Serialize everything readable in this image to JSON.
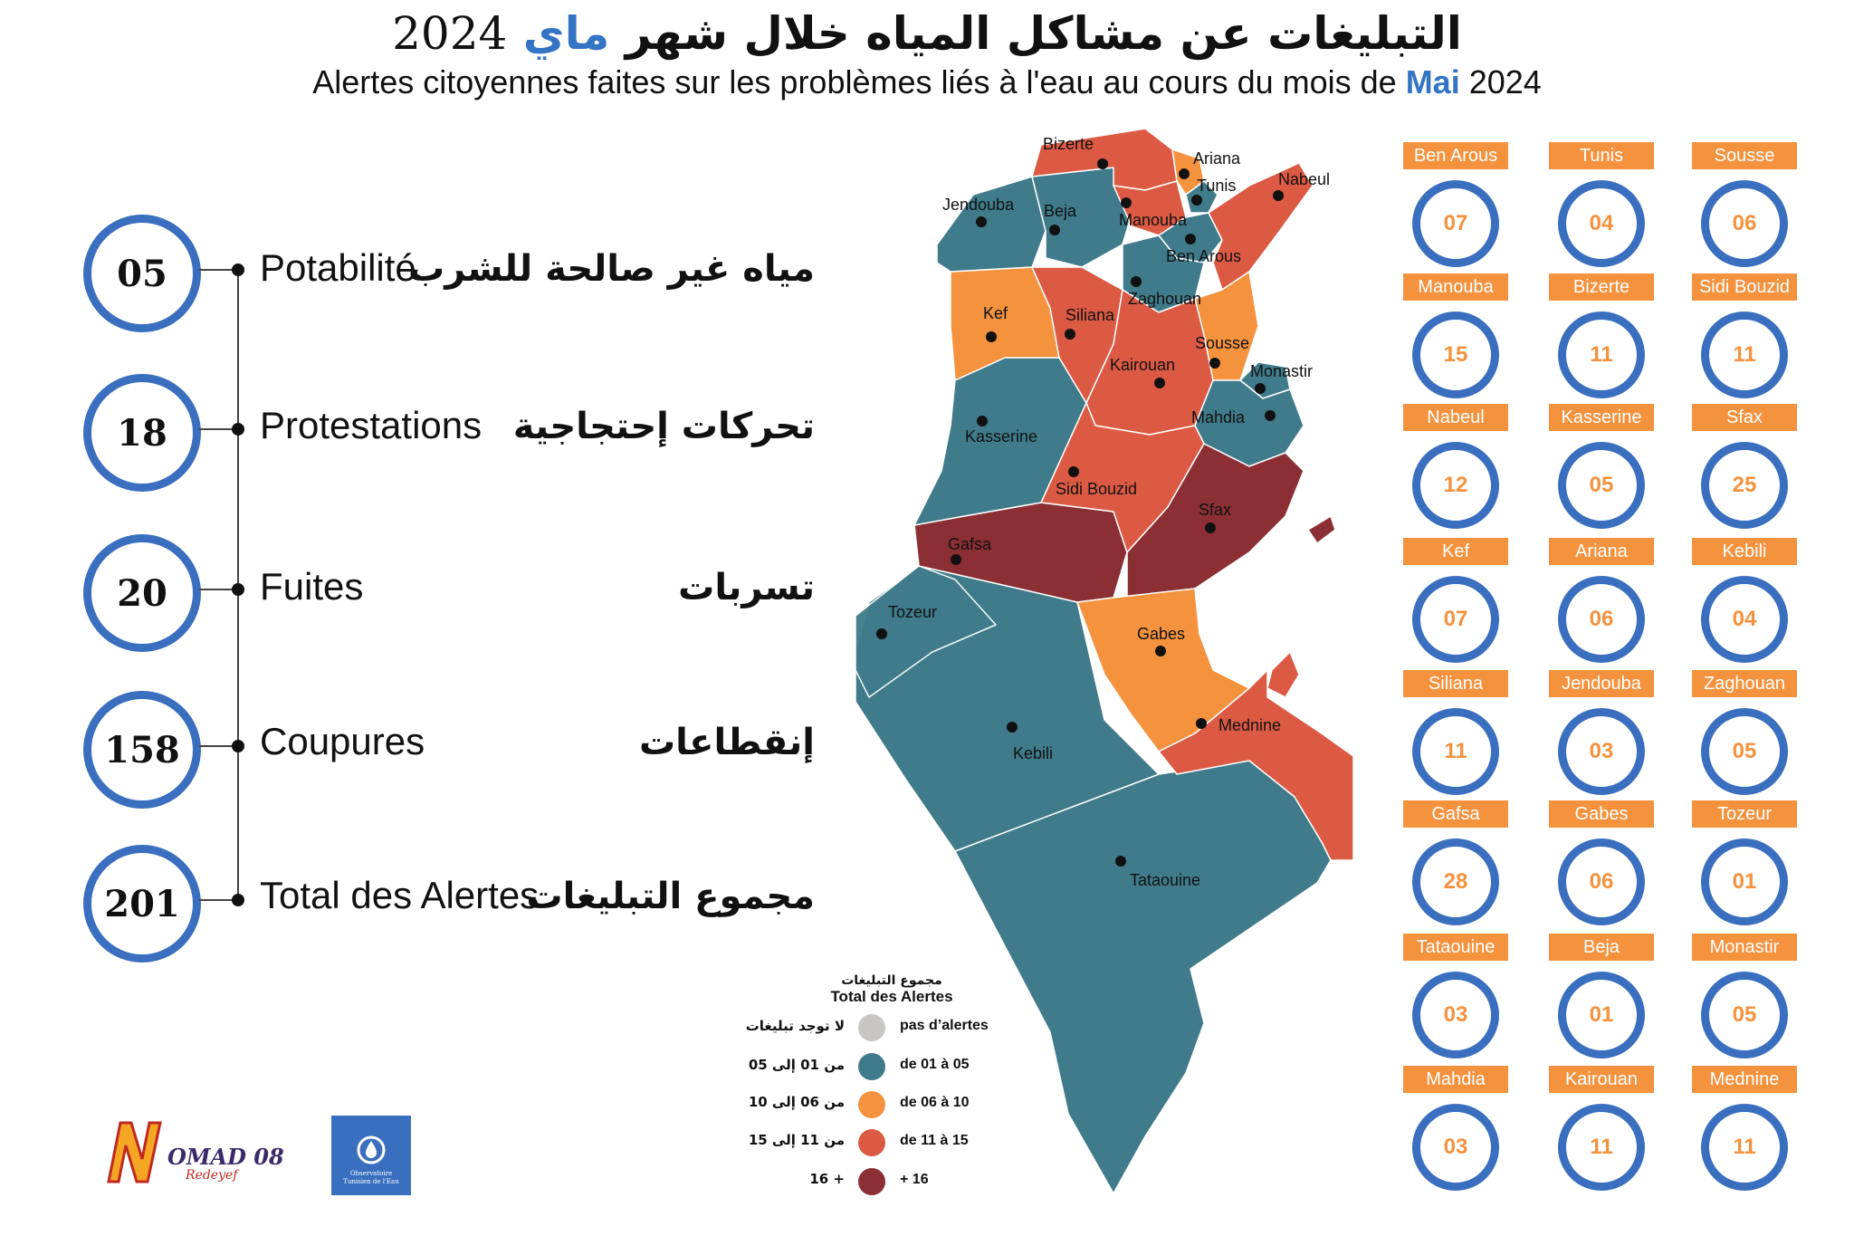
{
  "title": {
    "ar_prefix": "التبليغات عن مشاكل المياه خلال شهر",
    "ar_month": "ماي",
    "ar_year": "2024",
    "fr_prefix": "Alertes citoyennes faites sur les problèmes liés à l'eau au cours du mois de",
    "fr_month": "Mai",
    "fr_year": "2024"
  },
  "stats": [
    {
      "value": "05",
      "fr": "Potabilité",
      "ar": "مياه غير صالحة للشرب"
    },
    {
      "value": "18",
      "fr": "Protestations",
      "ar": "تحركات إحتجاجية"
    },
    {
      "value": "20",
      "fr": "Fuites",
      "ar": "تسربات"
    },
    {
      "value": "158",
      "fr": "Coupures",
      "ar": "إنقطاعات"
    },
    {
      "value": "201",
      "fr": "Total des Alertes",
      "ar": "مجموع التبليغات"
    }
  ],
  "governorates": [
    {
      "name": "Ben Arous",
      "value": "07"
    },
    {
      "name": "Tunis",
      "value": "04"
    },
    {
      "name": "Sousse",
      "value": "06"
    },
    {
      "name": "Manouba",
      "value": "15"
    },
    {
      "name": "Bizerte",
      "value": "11"
    },
    {
      "name": "Sidi Bouzid",
      "value": "11"
    },
    {
      "name": "Nabeul",
      "value": "12"
    },
    {
      "name": "Kasserine",
      "value": "05"
    },
    {
      "name": "Sfax",
      "value": "25"
    },
    {
      "name": "Kef",
      "value": "07"
    },
    {
      "name": "Ariana",
      "value": "06"
    },
    {
      "name": "Kebili",
      "value": "04"
    },
    {
      "name": "Siliana",
      "value": "11"
    },
    {
      "name": "Jendouba",
      "value": "03"
    },
    {
      "name": "Zaghouan",
      "value": "05"
    },
    {
      "name": "Gafsa",
      "value": "28"
    },
    {
      "name": "Gabes",
      "value": "06"
    },
    {
      "name": "Tozeur",
      "value": "01"
    },
    {
      "name": "Tataouine",
      "value": "03"
    },
    {
      "name": "Beja",
      "value": "01"
    },
    {
      "name": "Monastir",
      "value": "05"
    },
    {
      "name": "Mahdia",
      "value": "03"
    },
    {
      "name": "Kairouan",
      "value": "11"
    },
    {
      "name": "Mednine",
      "value": "11"
    }
  ],
  "map_labels": [
    "Bizerte",
    "Ariana",
    "Nabeul",
    "Tunis",
    "Jendouba",
    "Beja",
    "Manouba",
    "Ben Arous",
    "Zaghouan",
    "Kef",
    "Siliana",
    "Sousse",
    "Kairouan",
    "Monastir",
    "Kasserine",
    "Mahdia",
    "Sidi Bouzid",
    "Sfax",
    "Gafsa",
    "Tozeur",
    "Gabes",
    "Mednine",
    "Kebili",
    "Tataouine"
  ],
  "legend": {
    "title_ar": "مجموع التبليغات",
    "title_fr": "Total des Alertes",
    "items": [
      {
        "ar": "لا توجد تبليغات",
        "fr": "pas d’alertes",
        "color": "#c8c6c2"
      },
      {
        "ar": "من 01 إلى 05",
        "fr": "de 01 à 05",
        "color": "#3f7b8a"
      },
      {
        "ar": "من 06 إلى 10",
        "fr": "de 06 à 10",
        "color": "#f5923e"
      },
      {
        "ar": "من 11 إلى 15",
        "fr": "de 11 à 15",
        "color": "#dc5a44"
      },
      {
        "ar": "16 +",
        "fr": "+ 16",
        "color": "#8c2f34"
      }
    ]
  },
  "logos": {
    "nomad_name": "OMAD 08",
    "nomad_sub": "Redeyef",
    "ote_line1": "Observatoire",
    "ote_line2": "Tunisien de l'Eau"
  },
  "colors": {
    "accent_blue": "#3a6fc0",
    "label_orange": "#f5923e",
    "cat_teal": "#3f7b8a",
    "cat_orange": "#f5923e",
    "cat_red": "#dc5a44",
    "cat_darkred": "#8c2f34"
  }
}
